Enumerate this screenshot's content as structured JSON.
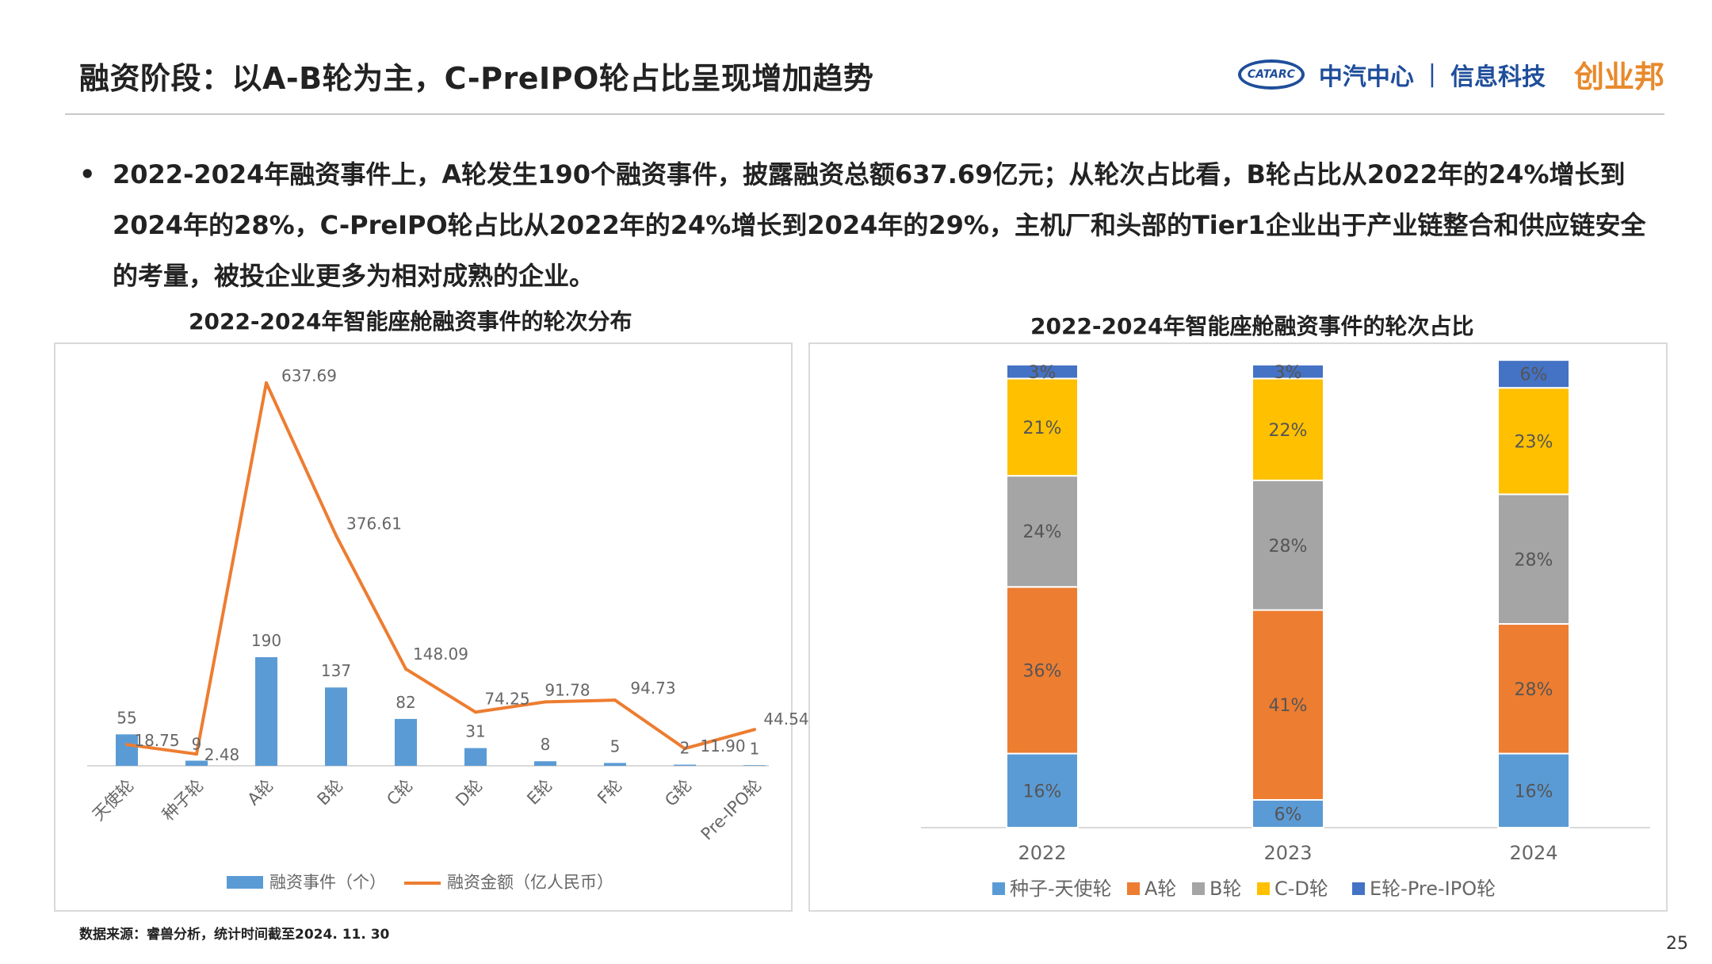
{
  "header": {
    "title": "融资阶段：以A-B轮为主，C-PreIPO轮占比呈现增加趋势",
    "logo_badge": "CATARC",
    "logo_org": "中汽中心",
    "logo_sep": "|",
    "logo_dept": "信息科技",
    "logo_partner": "创业邦"
  },
  "bullet": {
    "marker": "•",
    "text": "2022-2024年融资事件上，A轮发生190个融资事件，披露融资总额637.69亿元；从轮次占比看，B轮占比从2022年的24%增长到2024年的28%，C-PreIPO轮占比从2022年的24%增长到2024年的29%，主机厂和头部的Tier1企业出于产业链整合和供应链安全的考量，被投企业更多为相对成熟的企业。"
  },
  "footer": {
    "source": "数据来源：睿兽分析，统计时间截至2024. 11. 30",
    "page_number": "25"
  },
  "chart_data": [
    {
      "type": "bar",
      "title": "2022-2024年智能座舱融资事件的轮次分布",
      "categories": [
        "天使轮",
        "种子轮",
        "A轮",
        "B轮",
        "C轮",
        "D轮",
        "E轮",
        "F轮",
        "G轮",
        "Pre-IPO轮"
      ],
      "series": [
        {
          "name": "融资事件（个）",
          "type": "bar",
          "color": "#5b9bd5",
          "values": [
            55,
            9,
            190,
            137,
            82,
            31,
            8,
            5,
            2,
            1
          ],
          "labels": [
            "55",
            "9",
            "190",
            "137",
            "82",
            "31",
            "8",
            "5",
            "2",
            "1"
          ]
        },
        {
          "name": "融资金额（亿人民币）",
          "type": "line",
          "color": "#ed7d31",
          "values": [
            18.75,
            2.48,
            637.69,
            376.61,
            148.09,
            74.25,
            91.78,
            94.73,
            11.9,
            44.54
          ],
          "labels": [
            "18.75",
            "2.48",
            "637.69",
            "376.61",
            "148.09",
            "74.25",
            "91.78",
            "94.73",
            "11.90",
            "44.54"
          ]
        }
      ],
      "legend_position": "bottom",
      "grid": false
    },
    {
      "type": "bar",
      "stacked": true,
      "percent": true,
      "title": "2022-2024年智能座舱融资事件的轮次占比",
      "categories": [
        "2022",
        "2023",
        "2024"
      ],
      "series": [
        {
          "name": "种子-天使轮",
          "color": "#5b9bd5",
          "values": [
            16,
            6,
            16
          ],
          "labels": [
            "16%",
            "6%",
            "16%"
          ]
        },
        {
          "name": "A轮",
          "color": "#ed7d31",
          "values": [
            36,
            41,
            28
          ],
          "labels": [
            "36%",
            "41%",
            "28%"
          ]
        },
        {
          "name": "B轮",
          "color": "#a5a5a5",
          "values": [
            24,
            28,
            28
          ],
          "labels": [
            "24%",
            "28%",
            "28%"
          ]
        },
        {
          "name": "C-D轮",
          "color": "#ffc000",
          "values": [
            21,
            22,
            23
          ],
          "labels": [
            "21%",
            "22%",
            "23%"
          ]
        },
        {
          "name": "E轮-Pre-IPO轮",
          "color": "#4472c4",
          "values": [
            3,
            3,
            6
          ],
          "labels": [
            "3%",
            "3%",
            "6%"
          ]
        }
      ],
      "legend_position": "bottom",
      "grid": false
    }
  ]
}
